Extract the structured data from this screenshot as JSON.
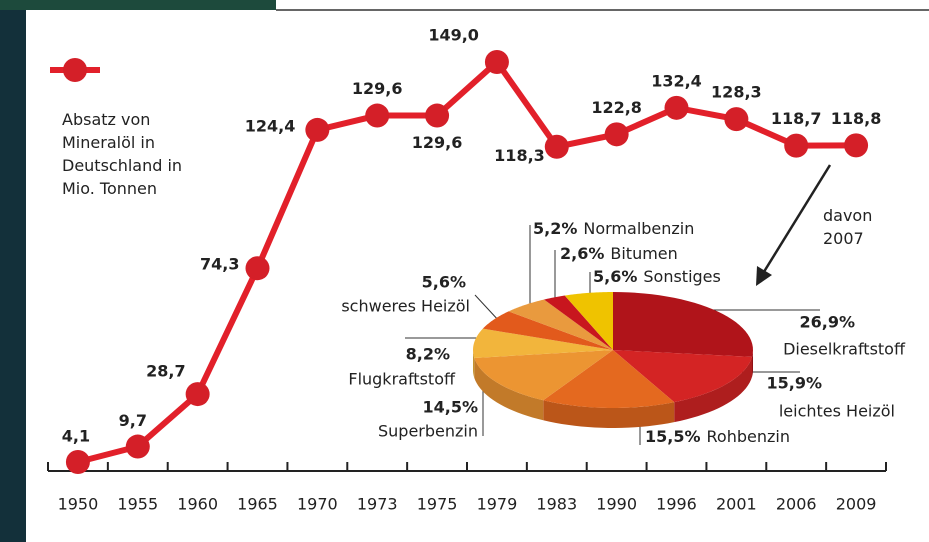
{
  "chart_data": [
    {
      "type": "line",
      "categories": [
        "1950",
        "1955",
        "1960",
        "1965",
        "1970",
        "1973",
        "1975",
        "1979",
        "1983",
        "1990",
        "1996",
        "2001",
        "2006",
        "2009"
      ],
      "series": [
        {
          "name": "Absatz von Mineralöl in Deutschland in Mio. Tonnen",
          "color": "#e2202a",
          "values": [
            4.1,
            9.7,
            28.7,
            74.3,
            124.4,
            129.6,
            129.6,
            149.0,
            118.3,
            122.8,
            132.4,
            128.3,
            118.7,
            118.8
          ],
          "value_labels": [
            "4,1",
            "9,7",
            "28,7",
            "74,3",
            "124,4",
            "129,6",
            "129,6",
            "149,0",
            "118,3",
            "122,8",
            "132,4",
            "128,3",
            "118,7",
            "118,8"
          ]
        }
      ],
      "annotation": "davon 2007"
    },
    {
      "type": "pie",
      "categories": [
        "Dieselkraftstoff",
        "leichtes Heizöl",
        "Rohbenzin",
        "Superbenzin",
        "Flugkraftstoff",
        "schweres Heizöl",
        "Normalbenzin",
        "Bitumen",
        "Sonstiges"
      ],
      "values": [
        26.9,
        15.9,
        15.5,
        14.5,
        8.2,
        5.6,
        5.2,
        2.6,
        5.6
      ],
      "value_labels": [
        "26,9%",
        "15,9%",
        "15,5%",
        "14,5%",
        "8,2%",
        "5,6%",
        "5,2%",
        "2,6%",
        "5,6%"
      ],
      "colors": [
        "#b0141a",
        "#d42424",
        "#e4691f",
        "#ec9532",
        "#f2b53c",
        "#e25a1c",
        "#e99a3e",
        "#c8161e",
        "#efc300"
      ]
    }
  ]
}
